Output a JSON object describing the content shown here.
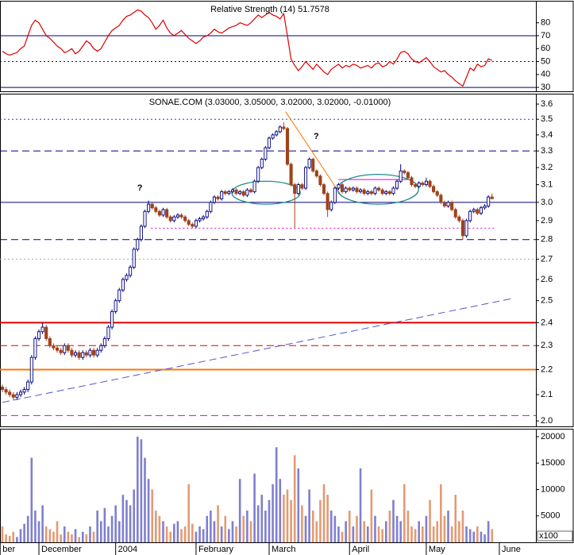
{
  "chart_data": [
    {
      "type": "line",
      "title": "Relative Strength (14) 51.7578",
      "color": "#dd0000",
      "values": [
        58,
        56,
        55,
        56,
        57,
        60,
        62,
        70,
        78,
        82,
        80,
        75,
        70,
        68,
        65,
        62,
        60,
        57,
        58,
        60,
        56,
        58,
        62,
        66,
        64,
        60,
        58,
        60,
        65,
        70,
        74,
        76,
        78,
        82,
        85,
        86,
        88,
        90,
        89,
        86,
        84,
        80,
        75,
        78,
        82,
        76,
        72,
        70,
        72,
        74,
        71,
        68,
        66,
        64,
        66,
        69,
        70,
        72,
        75,
        73,
        72,
        74,
        76,
        77,
        78,
        80,
        79,
        78,
        80,
        83,
        86,
        84,
        86,
        88,
        86,
        85,
        83,
        87,
        70,
        52,
        47,
        43,
        46,
        50,
        47,
        44,
        48,
        45,
        42,
        40,
        44,
        46,
        48,
        45,
        47,
        46,
        48,
        47,
        45,
        46,
        47,
        45,
        48,
        49,
        46,
        47,
        50,
        48,
        52,
        57,
        58,
        56,
        52,
        50,
        49,
        51,
        53,
        50,
        46,
        44,
        42,
        43,
        40,
        38,
        35,
        33,
        31,
        38,
        45,
        43,
        48,
        46,
        47,
        52,
        51
      ],
      "xlim": [
        -0.65,
        146
      ],
      "ylim": [
        27,
        97
      ],
      "yticks": [
        30,
        40,
        50,
        60,
        70,
        80
      ],
      "hlines": [
        {
          "value": 70,
          "color": "#000080",
          "style": "solid",
          "width": 1
        },
        {
          "value": 50,
          "color": "#0000cc",
          "style": "dotted",
          "width": 1
        },
        {
          "value": 30,
          "color": "#000080",
          "style": "solid",
          "width": 1
        }
      ]
    },
    {
      "type": "candlestick",
      "title": "SONAE.COM (3.03000, 3.05000, 3.02000, 3.02000, -0.01000)",
      "up_color": "#000080",
      "down_color": "#a0421a",
      "log_scale": true,
      "open": [
        2.13,
        2.12,
        2.11,
        2.1,
        2.09,
        2.1,
        2.11,
        2.12,
        2.15,
        2.25,
        2.33,
        2.36,
        2.38,
        2.33,
        2.3,
        2.29,
        2.28,
        2.27,
        2.3,
        2.28,
        2.26,
        2.27,
        2.25,
        2.27,
        2.26,
        2.28,
        2.26,
        2.28,
        2.3,
        2.33,
        2.38,
        2.45,
        2.5,
        2.55,
        2.6,
        2.62,
        2.66,
        2.75,
        2.8,
        2.87,
        2.95,
        2.99,
        2.97,
        2.95,
        2.93,
        2.96,
        2.92,
        2.9,
        2.92,
        2.93,
        2.92,
        2.9,
        2.88,
        2.87,
        2.9,
        2.91,
        2.92,
        2.95,
        3.0,
        3.03,
        3.02,
        3.06,
        3.05,
        3.06,
        3.07,
        3.05,
        3.06,
        3.04,
        3.07,
        3.06,
        3.12,
        3.2,
        3.25,
        3.32,
        3.38,
        3.4,
        3.42,
        3.45,
        3.44,
        3.22,
        3.1,
        3.05,
        3.1,
        3.08,
        3.2,
        3.25,
        3.18,
        3.15,
        3.1,
        3.05,
        2.96,
        3.0,
        3.08,
        3.1,
        3.06,
        3.08,
        3.07,
        3.08,
        3.06,
        3.07,
        3.05,
        3.06,
        3.05,
        3.08,
        3.07,
        3.05,
        3.06,
        3.05,
        3.08,
        3.12,
        3.18,
        3.17,
        3.14,
        3.1,
        3.09,
        3.11,
        3.1,
        3.12,
        3.09,
        3.06,
        3.04,
        3.0,
        2.98,
        3.0,
        2.96,
        2.92,
        2.9,
        2.82,
        2.9,
        2.95,
        2.96,
        2.94,
        2.97,
        2.98,
        3.03
      ],
      "high": [
        2.14,
        2.13,
        2.12,
        2.11,
        2.11,
        2.12,
        2.13,
        2.16,
        2.26,
        2.34,
        2.37,
        2.4,
        2.39,
        2.34,
        2.31,
        2.3,
        2.29,
        2.31,
        2.31,
        2.29,
        2.28,
        2.28,
        2.28,
        2.28,
        2.29,
        2.29,
        2.29,
        2.31,
        2.34,
        2.39,
        2.46,
        2.51,
        2.56,
        2.61,
        2.63,
        2.67,
        2.76,
        2.81,
        2.88,
        2.96,
        3.01,
        3.0,
        2.98,
        2.96,
        2.97,
        2.97,
        2.93,
        2.93,
        2.94,
        2.94,
        2.93,
        2.91,
        2.89,
        2.91,
        2.92,
        2.93,
        2.96,
        3.01,
        3.04,
        3.04,
        3.07,
        3.07,
        3.07,
        3.08,
        3.08,
        3.07,
        3.07,
        3.08,
        3.08,
        3.13,
        3.21,
        3.26,
        3.33,
        3.39,
        3.41,
        3.43,
        3.46,
        3.48,
        3.45,
        3.23,
        3.11,
        3.11,
        3.11,
        3.21,
        3.26,
        3.26,
        3.19,
        3.16,
        3.11,
        3.06,
        3.01,
        3.09,
        3.11,
        3.11,
        3.09,
        3.09,
        3.09,
        3.09,
        3.08,
        3.08,
        3.07,
        3.07,
        3.09,
        3.09,
        3.08,
        3.07,
        3.07,
        3.09,
        3.13,
        3.22,
        3.19,
        3.18,
        3.15,
        3.11,
        3.12,
        3.12,
        3.14,
        3.13,
        3.1,
        3.07,
        3.05,
        3.01,
        3.01,
        3.01,
        2.97,
        2.93,
        2.91,
        2.91,
        2.96,
        2.97,
        2.97,
        2.98,
        2.99,
        3.04,
        3.05
      ],
      "low": [
        2.11,
        2.1,
        2.09,
        2.08,
        2.08,
        2.09,
        2.1,
        2.11,
        2.14,
        2.24,
        2.32,
        2.35,
        2.32,
        2.29,
        2.28,
        2.27,
        2.26,
        2.26,
        2.27,
        2.25,
        2.25,
        2.24,
        2.24,
        2.25,
        2.25,
        2.25,
        2.25,
        2.27,
        2.29,
        2.32,
        2.37,
        2.44,
        2.49,
        2.54,
        2.59,
        2.61,
        2.65,
        2.74,
        2.79,
        2.86,
        2.94,
        2.96,
        2.94,
        2.92,
        2.92,
        2.91,
        2.89,
        2.89,
        2.91,
        2.91,
        2.89,
        2.87,
        2.86,
        2.86,
        2.89,
        2.9,
        2.91,
        2.94,
        2.99,
        3.01,
        3.01,
        3.04,
        3.04,
        3.05,
        3.04,
        3.04,
        3.03,
        3.03,
        3.05,
        3.05,
        3.11,
        3.19,
        3.24,
        3.31,
        3.37,
        3.39,
        3.41,
        3.43,
        3.21,
        3.09,
        2.86,
        3.04,
        3.07,
        3.07,
        3.19,
        3.17,
        3.14,
        3.09,
        3.04,
        2.92,
        2.95,
        2.99,
        3.07,
        3.05,
        3.05,
        3.06,
        3.06,
        3.05,
        3.05,
        3.04,
        3.04,
        3.04,
        3.04,
        3.06,
        3.04,
        3.04,
        3.04,
        3.04,
        3.07,
        3.11,
        3.16,
        3.13,
        3.09,
        3.08,
        3.08,
        3.09,
        3.09,
        3.08,
        3.05,
        3.03,
        2.99,
        2.97,
        2.97,
        2.95,
        2.91,
        2.89,
        2.8,
        2.81,
        2.89,
        2.94,
        2.93,
        2.93,
        2.96,
        2.97,
        3.02
      ],
      "close": [
        2.12,
        2.11,
        2.1,
        2.09,
        2.1,
        2.11,
        2.12,
        2.15,
        2.25,
        2.33,
        2.36,
        2.38,
        2.33,
        2.3,
        2.29,
        2.28,
        2.27,
        2.3,
        2.28,
        2.26,
        2.27,
        2.25,
        2.27,
        2.26,
        2.28,
        2.26,
        2.28,
        2.3,
        2.33,
        2.38,
        2.45,
        2.5,
        2.55,
        2.6,
        2.62,
        2.66,
        2.75,
        2.8,
        2.87,
        2.95,
        2.99,
        2.97,
        2.95,
        2.93,
        2.96,
        2.92,
        2.9,
        2.92,
        2.93,
        2.92,
        2.9,
        2.88,
        2.87,
        2.9,
        2.91,
        2.92,
        2.95,
        3.0,
        3.03,
        3.02,
        3.06,
        3.05,
        3.06,
        3.07,
        3.05,
        3.06,
        3.04,
        3.07,
        3.06,
        3.12,
        3.2,
        3.25,
        3.32,
        3.38,
        3.4,
        3.42,
        3.45,
        3.44,
        3.22,
        3.1,
        3.05,
        3.1,
        3.08,
        3.2,
        3.25,
        3.18,
        3.15,
        3.1,
        3.05,
        2.96,
        3.0,
        3.08,
        3.1,
        3.06,
        3.08,
        3.07,
        3.08,
        3.06,
        3.07,
        3.05,
        3.06,
        3.05,
        3.08,
        3.07,
        3.05,
        3.06,
        3.05,
        3.08,
        3.12,
        3.18,
        3.17,
        3.14,
        3.1,
        3.09,
        3.11,
        3.1,
        3.12,
        3.09,
        3.06,
        3.04,
        3.0,
        2.98,
        3.0,
        2.96,
        2.92,
        2.9,
        2.82,
        2.9,
        2.95,
        2.96,
        2.94,
        2.97,
        2.98,
        3.03,
        3.02
      ],
      "xlim": [
        -0.65,
        146
      ],
      "ylim": [
        1.98,
        3.67
      ],
      "yticks": [
        {
          "value": 2,
          "label": "2.0"
        },
        2.1,
        2.2,
        2.3,
        2.4,
        2.5,
        2.6,
        2.7,
        2.8,
        2.9,
        {
          "value": 3,
          "label": "3.0"
        },
        3.1,
        3.2,
        3.3,
        3.4,
        3.5,
        3.6
      ],
      "hlines": [
        {
          "value": 3.5,
          "color": "#3333cc",
          "style": "dotted",
          "width": 1
        },
        {
          "value": 3.3,
          "color": "#000080",
          "style": "dashed",
          "width": 1
        },
        {
          "value": 3.0,
          "color": "#000080",
          "style": "solid",
          "width": 1
        },
        {
          "value": 2.8,
          "color": "#000080",
          "style": "dashed",
          "width": 1
        },
        {
          "value": 2.7,
          "color": "#aaaaaa",
          "style": "dotted",
          "width": 1
        },
        {
          "value": 2.4,
          "color": "#dd0000",
          "style": "solid",
          "width": 2
        },
        {
          "value": 2.3,
          "color": "#dd0000",
          "style": "dashed",
          "width": 1
        },
        {
          "value": 2.2,
          "color": "#ff7700",
          "style": "solid",
          "width": 2
        },
        {
          "value": 2.02,
          "color": "#dd00dd",
          "style": "dashed",
          "width": 1
        }
      ],
      "segments": [
        {
          "x": [
            0,
            139.5
          ],
          "y": [
            2.07,
            2.51
          ],
          "color": "#5555cc",
          "style": "dashed"
        },
        {
          "x": [
            77.5,
            93
          ],
          "y": [
            3.55,
            3.03
          ],
          "color": "#ff7700",
          "style": "solid"
        },
        {
          "x": [
            40.7,
            135
          ],
          "y": [
            2.86,
            2.86
          ],
          "color": "#dd00dd",
          "style": "dotted"
        },
        {
          "x": [
            92,
            111
          ],
          "y": [
            3.13,
            3.13
          ],
          "color": "#dd00dd",
          "style": "solid"
        }
      ],
      "ellipses": [
        {
          "x": [
            62.8,
            81.5
          ],
          "y": [
            2.99,
            3.12
          ],
          "color": "#208c8c"
        },
        {
          "x": [
            91.7,
            113.9
          ],
          "y": [
            2.99,
            3.16
          ],
          "color": "#208c8c"
        }
      ],
      "annotations": [
        {
          "text": "?",
          "x": 37.6,
          "y": 3.08,
          "color": "#0000dd"
        },
        {
          "text": "?",
          "x": 85.9,
          "y": 3.39,
          "color": "#ff7700"
        }
      ]
    },
    {
      "type": "bar",
      "up_color": "#7f7fcf",
      "down_color": "#e39a73",
      "unit_label": "x100",
      "values": [
        3000,
        1500,
        1200,
        2000,
        1000,
        2500,
        3500,
        5000,
        16000,
        6000,
        4000,
        7000,
        3000,
        2500,
        2000,
        4000,
        1500,
        3000,
        2000,
        1500,
        2500,
        1000,
        2000,
        1500,
        3000,
        2000,
        6000,
        4000,
        6500,
        3000,
        5000,
        7000,
        4000,
        9000,
        8000,
        7000,
        10000,
        20000,
        19500,
        16000,
        12000,
        10000,
        6000,
        5000,
        4000,
        3000,
        2000,
        3500,
        4000,
        2500,
        3000,
        11000,
        3500,
        2000,
        3000,
        2500,
        5000,
        6000,
        4000,
        7000,
        3000,
        5000,
        2500,
        4000,
        3000,
        12000,
        5000,
        6000,
        4000,
        13000,
        7000,
        9000,
        6000,
        8000,
        11000,
        18000,
        12000,
        9000,
        10000,
        8000,
        16500,
        14000,
        7000,
        5000,
        10000,
        6000,
        4000,
        8000,
        11000,
        9000,
        6000,
        5000,
        3000,
        2000,
        4000,
        6000,
        3000,
        5000,
        14000,
        4000,
        3000,
        10000,
        5000,
        3000,
        2500,
        4000,
        6000,
        8000,
        5000,
        4000,
        11000,
        6000,
        3000,
        2500,
        4000,
        3000,
        5000,
        8000,
        3000,
        4000,
        11000,
        5000,
        6000,
        3000,
        9000,
        4000,
        6000,
        3000,
        2500,
        2000,
        3000,
        2000,
        1500,
        4000,
        2500
      ],
      "xlim": [
        -0.65,
        146
      ],
      "ylim": [
        0,
        21500
      ],
      "yticks": [
        5000,
        10000,
        15000,
        20000
      ],
      "xticks": [
        {
          "value": -0.6,
          "label": "ber"
        },
        {
          "value": 10,
          "label": "December"
        },
        {
          "value": 31,
          "label": "2004"
        },
        {
          "value": 53,
          "label": "February"
        },
        {
          "value": 73,
          "label": "March"
        },
        {
          "value": 95,
          "label": "April"
        },
        {
          "value": 116,
          "label": "May"
        },
        {
          "value": 136,
          "label": "June"
        }
      ]
    }
  ]
}
